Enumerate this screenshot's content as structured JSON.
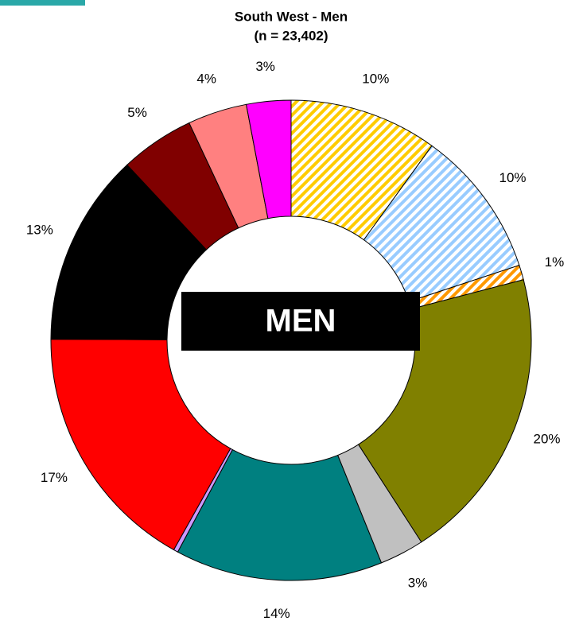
{
  "chart_data": {
    "type": "donut",
    "title": "South West  - Men",
    "subtitle": "(n = 23,402)",
    "center_label": "MEN",
    "categories": [
      null,
      null,
      null,
      null,
      null,
      null,
      null,
      null,
      null,
      null,
      null,
      null
    ],
    "values": [
      10,
      10,
      1,
      20,
      3,
      14,
      0.3,
      17,
      13,
      5,
      4,
      3
    ],
    "value_labels": [
      "10%",
      "10%",
      "1%",
      "20%",
      "3%",
      "14%",
      null,
      "17%",
      "13%",
      "5%",
      "4%",
      "3%"
    ],
    "colors": [
      "#ffcc00",
      "#99ccff",
      "#ff9900",
      "#808000",
      "#c0c0c0",
      "#008080",
      "#cc99ff",
      "#ff0000",
      "#000000",
      "#800000",
      "#ff8080",
      "#ff00ff"
    ],
    "hatched": [
      true,
      true,
      true,
      false,
      false,
      false,
      false,
      false,
      false,
      false,
      false,
      false
    ]
  }
}
